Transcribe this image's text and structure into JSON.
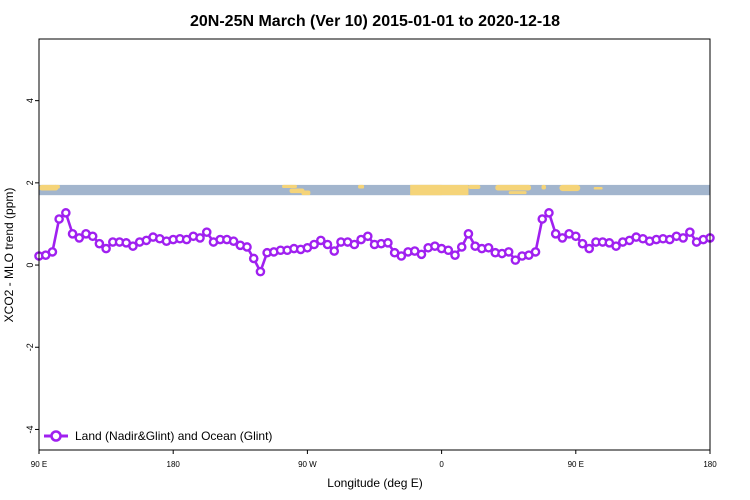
{
  "chart_data": {
    "type": "line",
    "title": "20N-25N March (Ver 10)   2015-01-01 to 2020-12-18",
    "xlabel": "Longitude (deg E)",
    "ylabel": "XCO2 - MLO trend (ppm)",
    "xlim": [
      90,
      540
    ],
    "ylim": [
      -4.5,
      5.5
    ],
    "x_ticks": [
      {
        "value": 90,
        "label": "90 E"
      },
      {
        "value": 180,
        "label": "180"
      },
      {
        "value": 270,
        "label": "90 W"
      },
      {
        "value": 360,
        "label": "0"
      },
      {
        "value": 450,
        "label": "90 E"
      },
      {
        "value": 540,
        "label": "180"
      }
    ],
    "y_ticks": [
      {
        "value": -4,
        "label": "-4"
      },
      {
        "value": -2,
        "label": "-2"
      },
      {
        "value": 0,
        "label": "0"
      },
      {
        "value": 2,
        "label": "2"
      },
      {
        "value": 4,
        "label": "4"
      }
    ],
    "grid": false,
    "legend_position": "bottom-left",
    "colors": {
      "series": "#a020f0",
      "ocean": "#a2b5cd",
      "land": "#f5d479"
    },
    "map_band": {
      "y_range": [
        1.7,
        1.95
      ]
    },
    "series": [
      {
        "name": "Land (Nadir&Glint) and Ocean (Glint)",
        "x": [
          90,
          94.5,
          99,
          103.5,
          108,
          112.5,
          117,
          121.5,
          126,
          130.5,
          135,
          139.5,
          144,
          148.5,
          153,
          157.5,
          162,
          166.5,
          171,
          175.5,
          180,
          184.5,
          189,
          193.5,
          198,
          202.5,
          207,
          211.5,
          216,
          220.5,
          225,
          229.5,
          234,
          238.5,
          243,
          247.5,
          252,
          256.5,
          261,
          265.5,
          270,
          274.5,
          279,
          283.5,
          288,
          292.5,
          297,
          301.5,
          306,
          310.5,
          315,
          319.5,
          324,
          328.5,
          333,
          337.5,
          342,
          346.5,
          351,
          355.5,
          360,
          364.5,
          369,
          373.5,
          378,
          382.5,
          387,
          391.5,
          396,
          400.5,
          405,
          409.5,
          414,
          418.5,
          423,
          427.5,
          432,
          436.5,
          441,
          445.5,
          450,
          454.5,
          459,
          463.5,
          468,
          472.5,
          477,
          481.5,
          486,
          490.5,
          495,
          499.5,
          504,
          508.5,
          513,
          517.5,
          522,
          526.5,
          531,
          535.5,
          540
        ],
        "values": [
          0.22,
          0.24,
          0.32,
          1.12,
          1.27,
          0.76,
          0.66,
          0.76,
          0.7,
          0.52,
          0.4,
          0.56,
          0.56,
          0.54,
          0.46,
          0.56,
          0.6,
          0.68,
          0.64,
          0.58,
          0.62,
          0.64,
          0.62,
          0.7,
          0.66,
          0.8,
          0.56,
          0.62,
          0.62,
          0.58,
          0.48,
          0.44,
          0.16,
          -0.16,
          0.3,
          0.32,
          0.36,
          0.36,
          0.4,
          0.38,
          0.42,
          0.5,
          0.6,
          0.5,
          0.34,
          0.56,
          0.56,
          0.5,
          0.62,
          0.7,
          0.5,
          0.52,
          0.54,
          0.3,
          0.22,
          0.32,
          0.34,
          0.26,
          0.42,
          0.46,
          0.4,
          0.36,
          0.24,
          0.44,
          0.76,
          0.46,
          0.4,
          0.42,
          0.3,
          0.28,
          0.32,
          0.12,
          0.22,
          0.24,
          0.32,
          1.12,
          1.27,
          0.76,
          0.66,
          0.76,
          0.7,
          0.52,
          0.4,
          0.56,
          0.56,
          0.54,
          0.46,
          0.56,
          0.6,
          0.68,
          0.64,
          0.58,
          0.62,
          0.64,
          0.62,
          0.7,
          0.66,
          0.8,
          0.56,
          0.62,
          0.66
        ]
      }
    ]
  }
}
